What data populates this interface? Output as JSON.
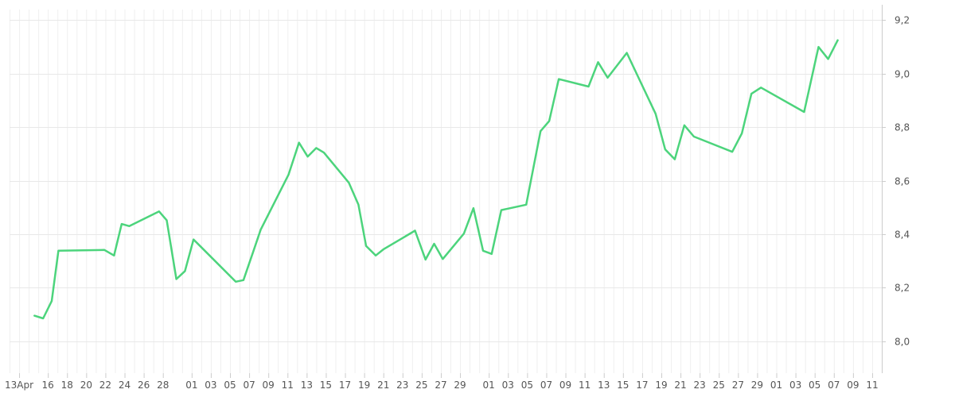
{
  "chart_data": {
    "type": "line",
    "title": "",
    "xlabel": "",
    "ylabel": "",
    "ylim": [
      7.88,
      9.24
    ],
    "y_ticks": [
      "8,0",
      "8,2",
      "8,4",
      "8,6",
      "8,8",
      "9,0",
      "9,2"
    ],
    "y_tick_values": [
      8.0,
      8.2,
      8.4,
      8.6,
      8.8,
      9.0,
      9.2
    ],
    "x_tick_labels": [
      "13Apr",
      "16",
      "18",
      "20",
      "22",
      "24",
      "26",
      "28",
      "01",
      "03",
      "05",
      "07",
      "09",
      "11",
      "13",
      "15",
      "17",
      "19",
      "21",
      "23",
      "25",
      "27",
      "29",
      "01",
      "03",
      "05",
      "07",
      "09",
      "11",
      "13",
      "15",
      "17",
      "19",
      "21",
      "23",
      "25",
      "27",
      "29",
      "01",
      "03",
      "05",
      "07",
      "09",
      "11"
    ],
    "x_tick_days": [
      0,
      3,
      5,
      7,
      9,
      11,
      13,
      15,
      18,
      20,
      22,
      24,
      26,
      28,
      30,
      32,
      34,
      36,
      38,
      40,
      42,
      44,
      46,
      49,
      51,
      53,
      55,
      57,
      59,
      61,
      63,
      65,
      67,
      69,
      71,
      73,
      75,
      77,
      79,
      81,
      83,
      85,
      87,
      89
    ],
    "x_range_days": [
      -1,
      90
    ],
    "grid": true,
    "line_color": "#4cd47c",
    "series": [
      {
        "name": "",
        "points": [
          [
            1.6,
            8.095
          ],
          [
            2.5,
            8.085
          ],
          [
            3.4,
            8.15
          ],
          [
            4.1,
            8.338
          ],
          [
            8.9,
            8.341
          ],
          [
            9.9,
            8.32
          ],
          [
            10.7,
            8.438
          ],
          [
            11.5,
            8.43
          ],
          [
            14.6,
            8.485
          ],
          [
            15.4,
            8.452
          ],
          [
            16.4,
            8.232
          ],
          [
            17.3,
            8.262
          ],
          [
            18.2,
            8.38
          ],
          [
            22.6,
            8.222
          ],
          [
            23.4,
            8.228
          ],
          [
            24.4,
            8.332
          ],
          [
            25.2,
            8.417
          ],
          [
            28.1,
            8.622
          ],
          [
            29.2,
            8.742
          ],
          [
            30.1,
            8.69
          ],
          [
            31.0,
            8.722
          ],
          [
            31.8,
            8.705
          ],
          [
            34.4,
            8.592
          ],
          [
            35.4,
            8.51
          ],
          [
            36.2,
            8.356
          ],
          [
            37.2,
            8.32
          ],
          [
            38.0,
            8.343
          ],
          [
            41.3,
            8.413
          ],
          [
            42.4,
            8.305
          ],
          [
            43.3,
            8.364
          ],
          [
            44.2,
            8.307
          ],
          [
            46.4,
            8.402
          ],
          [
            47.4,
            8.497
          ],
          [
            48.4,
            8.338
          ],
          [
            49.3,
            8.326
          ],
          [
            50.3,
            8.49
          ],
          [
            52.9,
            8.51
          ],
          [
            54.4,
            8.785
          ],
          [
            55.3,
            8.823
          ],
          [
            56.3,
            8.98
          ],
          [
            59.4,
            8.952
          ],
          [
            60.4,
            9.043
          ],
          [
            61.4,
            8.985
          ],
          [
            63.4,
            9.078
          ],
          [
            66.4,
            8.85
          ],
          [
            67.4,
            8.717
          ],
          [
            68.4,
            8.68
          ],
          [
            69.4,
            8.807
          ],
          [
            70.4,
            8.765
          ],
          [
            74.4,
            8.708
          ],
          [
            75.4,
            8.777
          ],
          [
            76.4,
            8.925
          ],
          [
            77.4,
            8.948
          ],
          [
            81.9,
            8.857
          ],
          [
            83.4,
            9.1
          ],
          [
            84.4,
            9.055
          ],
          [
            85.4,
            9.125
          ]
        ]
      }
    ]
  }
}
